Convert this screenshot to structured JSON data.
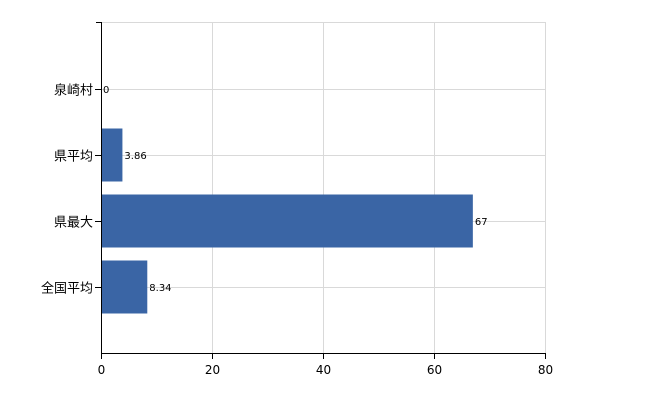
{
  "chart_data": {
    "type": "bar",
    "orientation": "horizontal",
    "categories": [
      "泉崎村",
      "県平均",
      "県最大",
      "全国平均"
    ],
    "values": [
      0,
      3.86,
      67,
      8.34
    ],
    "value_labels": [
      "0",
      "3.86",
      "67",
      "8.34"
    ],
    "xlim": [
      0,
      80
    ],
    "xticks": [
      0,
      20,
      40,
      60,
      80
    ],
    "grid": true,
    "bar_color": "#3a65a5"
  }
}
